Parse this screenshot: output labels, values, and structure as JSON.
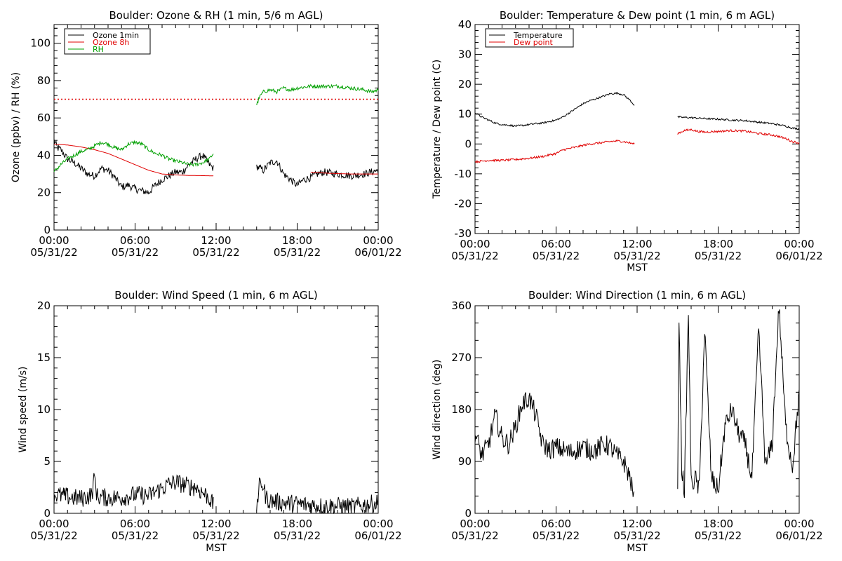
{
  "chart_data": [
    {
      "type": "line",
      "title": "Boulder: Ozone & RH (1 min, 5/6 m AGL)",
      "ylabel": "Ozone (ppbv) / RH (%)",
      "xlabel": "",
      "ylim": [
        0,
        110
      ],
      "yticks": [
        0,
        20,
        40,
        60,
        80,
        100
      ],
      "xlim": [
        "2022-05-31 00:00",
        "2022-06-01 00:00"
      ],
      "xtick_labels": [
        [
          "00:00",
          "05/31/22"
        ],
        [
          "06:00",
          "05/31/22"
        ],
        [
          "12:00",
          "05/31/22"
        ],
        [
          "18:00",
          "05/31/22"
        ],
        [
          "00:00",
          "06/01/22"
        ]
      ],
      "legend": "top-left",
      "reference_line": {
        "y": 70,
        "style": "dotted",
        "color": "#e00000"
      },
      "series": [
        {
          "name": "Ozone 1min",
          "color": "#000000",
          "noise": 2.0,
          "segments": [
            {
              "x": [
                0,
                0.25,
                0.5,
                1,
                1.5,
                2,
                2.5,
                3,
                3.5,
                4,
                4.5,
                5,
                5.5,
                6,
                6.5,
                7,
                7.5,
                8,
                8.5,
                9,
                9.5,
                10,
                10.5,
                11,
                11.5,
                11.8
              ],
              "y": [
                48,
                44,
                43,
                38,
                36,
                33,
                30,
                29,
                33,
                32,
                28,
                23,
                24,
                22,
                21,
                20,
                24,
                27,
                29,
                31,
                31,
                35,
                38,
                40,
                35,
                33
              ]
            },
            {
              "x": [
                15,
                15.5,
                16,
                16.5,
                17,
                17.5,
                18,
                18.5,
                19,
                19.5,
                20,
                21,
                22,
                23,
                23.5,
                24
              ],
              "y": [
                34,
                32,
                36,
                37,
                30,
                27,
                24,
                27,
                28,
                30,
                31,
                30,
                29,
                30,
                31,
                32
              ]
            }
          ]
        },
        {
          "name": "Ozone 8h",
          "color": "#e00000",
          "noise": 0,
          "segments": [
            {
              "x": [
                0,
                1,
                2,
                3,
                4,
                5,
                6,
                7,
                8,
                9,
                10,
                11,
                11.8
              ],
              "y": [
                46,
                45.5,
                44.5,
                43,
                41,
                38,
                35,
                32,
                30,
                29.5,
                29.2,
                29.1,
                29
              ]
            },
            {
              "x": [
                19,
                20,
                21,
                22,
                23,
                24
              ],
              "y": [
                31,
                30.5,
                30.2,
                30,
                30,
                30
              ]
            }
          ]
        },
        {
          "name": "RH",
          "color": "#00a000",
          "noise": 1.0,
          "segments": [
            {
              "x": [
                0,
                0.5,
                1,
                1.5,
                2,
                2.5,
                3,
                3.5,
                4,
                4.5,
                5,
                5.5,
                6,
                6.5,
                7,
                7.5,
                8,
                8.5,
                9,
                9.5,
                10,
                10.5,
                11,
                11.5,
                11.8
              ],
              "y": [
                31,
                35,
                38,
                40,
                42,
                43,
                45,
                47,
                46,
                44,
                43,
                46,
                47,
                46,
                43,
                41,
                40,
                38,
                37,
                36,
                35,
                35,
                36,
                38,
                41
              ]
            },
            {
              "x": [
                15,
                15.2,
                15.5,
                16,
                16.5,
                17,
                17.5,
                18,
                19,
                20,
                21,
                22,
                23,
                23.5,
                24
              ],
              "y": [
                67,
                71,
                74,
                75,
                74,
                76,
                75,
                76,
                77,
                77,
                77,
                76,
                75,
                74,
                75
              ]
            }
          ]
        }
      ]
    },
    {
      "type": "line",
      "title": "Boulder: Temperature & Dew point (1 min, 6 m AGL)",
      "ylabel": "Temperature / Dew point (C)",
      "xlabel": "MST",
      "ylim": [
        -30,
        40
      ],
      "yticks": [
        -30,
        -20,
        -10,
        0,
        10,
        20,
        30,
        40
      ],
      "xlim": [
        "2022-05-31 00:00",
        "2022-06-01 00:00"
      ],
      "xtick_labels": [
        [
          "00:00",
          "05/31/22"
        ],
        [
          "06:00",
          "05/31/22"
        ],
        [
          "12:00",
          "05/31/22"
        ],
        [
          "18:00",
          "05/31/22"
        ],
        [
          "00:00",
          "06/01/22"
        ]
      ],
      "legend": "top-left",
      "series": [
        {
          "name": "Temperature",
          "color": "#000000",
          "noise": 0.3,
          "segments": [
            {
              "x": [
                0,
                0.5,
                1,
                1.5,
                2,
                2.5,
                3,
                3.5,
                4,
                4.5,
                5,
                5.5,
                6,
                6.5,
                7,
                7.5,
                8,
                8.5,
                9,
                9.5,
                10,
                10.5,
                11,
                11.5,
                11.8
              ],
              "y": [
                10.5,
                9,
                8,
                7,
                6.5,
                6.3,
                6,
                6.2,
                6.5,
                6.8,
                7,
                7.5,
                8,
                9,
                10.5,
                12,
                13.5,
                14.5,
                15.2,
                16,
                16.8,
                17,
                16.5,
                14.5,
                13
              ]
            },
            {
              "x": [
                15,
                16,
                17,
                18,
                19,
                20,
                21,
                22,
                23,
                23.5,
                24
              ],
              "y": [
                9,
                8.8,
                8.5,
                8.3,
                8,
                7.8,
                7.3,
                6.8,
                6,
                5.3,
                5
              ]
            }
          ]
        },
        {
          "name": "Dew point",
          "color": "#e00000",
          "noise": 0.35,
          "segments": [
            {
              "x": [
                0,
                1,
                2,
                3,
                4,
                5,
                6,
                6.5,
                7,
                7.5,
                8,
                8.5,
                9,
                9.5,
                10,
                10.5,
                11,
                11.5,
                11.8
              ],
              "y": [
                -6,
                -5.5,
                -5.5,
                -5.2,
                -4.8,
                -4.2,
                -3.2,
                -2,
                -1.5,
                -1,
                -0.5,
                0,
                0.2,
                0.5,
                0.8,
                1,
                0.8,
                0.3,
                0
              ]
            },
            {
              "x": [
                15,
                15.5,
                16,
                16.5,
                17,
                18,
                19,
                20,
                21,
                22,
                22.5,
                23,
                23.5,
                24
              ],
              "y": [
                3.5,
                4.5,
                4.8,
                4.2,
                4,
                4.2,
                4.5,
                4.3,
                3.5,
                3,
                2.5,
                1.8,
                0.8,
                0.3
              ]
            }
          ]
        }
      ]
    },
    {
      "type": "line",
      "title": "Boulder: Wind Speed (1 min, 6 m AGL)",
      "ylabel": "Wind speed (m/s)",
      "xlabel": "MST",
      "ylim": [
        0,
        20
      ],
      "yticks": [
        0,
        5,
        10,
        15,
        20
      ],
      "xlim": [
        "2022-05-31 00:00",
        "2022-06-01 00:00"
      ],
      "xtick_labels": [
        [
          "00:00",
          "05/31/22"
        ],
        [
          "06:00",
          "05/31/22"
        ],
        [
          "12:00",
          "05/31/22"
        ],
        [
          "18:00",
          "05/31/22"
        ],
        [
          "00:00",
          "06/01/22"
        ]
      ],
      "series": [
        {
          "name": "",
          "color": "#000000",
          "noise": 0.9,
          "segments": [
            {
              "x": [
                0,
                1,
                2,
                2.8,
                3,
                3.2,
                4,
                5,
                6,
                7,
                8,
                8.5,
                9,
                9.5,
                10,
                10.5,
                11,
                11.5,
                11.8
              ],
              "y": [
                1.8,
                1.6,
                1.4,
                1.8,
                3.5,
                1.6,
                1.5,
                1.5,
                1.8,
                1.7,
                2.4,
                2.8,
                3,
                2.8,
                2.6,
                2.5,
                2,
                1.5,
                0.7
              ]
            },
            {
              "x": [
                15,
                15.2,
                15.4,
                15.7,
                16,
                17,
                18,
                19,
                20,
                21,
                22,
                23,
                23.5,
                24
              ],
              "y": [
                0.8,
                2.5,
                3,
                1.5,
                1.2,
                1,
                0.9,
                0.8,
                0.7,
                0.7,
                0.6,
                0.8,
                0.9,
                1
              ]
            }
          ]
        }
      ]
    },
    {
      "type": "line",
      "title": "Boulder: Wind Direction (1 min, 6 m AGL)",
      "ylabel": "Wind direction (deg)",
      "xlabel": "MST",
      "ylim": [
        0,
        360
      ],
      "yticks": [
        0,
        90,
        180,
        270,
        360
      ],
      "xlim": [
        "2022-05-31 00:00",
        "2022-06-01 00:00"
      ],
      "xtick_labels": [
        [
          "00:00",
          "05/31/22"
        ],
        [
          "06:00",
          "05/31/22"
        ],
        [
          "12:00",
          "05/31/22"
        ],
        [
          "18:00",
          "05/31/22"
        ],
        [
          "00:00",
          "06/01/22"
        ]
      ],
      "series": [
        {
          "name": "",
          "color": "#000000",
          "noise": 18,
          "segments": [
            {
              "x": [
                0,
                0.5,
                1,
                1.5,
                2,
                2.5,
                3,
                3.5,
                4,
                4.5,
                5,
                5.5,
                6,
                6.5,
                7,
                7.5,
                8,
                8.5,
                9,
                9.5,
                10,
                10.5,
                11,
                11.5,
                11.8
              ],
              "y": [
                140,
                100,
                120,
                170,
                130,
                120,
                150,
                190,
                200,
                170,
                120,
                110,
                115,
                110,
                105,
                110,
                115,
                110,
                110,
                120,
                115,
                100,
                90,
                60,
                20
              ]
            },
            {
              "x": [
                15,
                15.1,
                15.3,
                15.5,
                15.8,
                16,
                16.3,
                16.6,
                17,
                17.5,
                18,
                18.5,
                19,
                19.5,
                20,
                20.5,
                21,
                21.5,
                22,
                22.5,
                23,
                23.5,
                24
              ],
              "y": [
                60,
                340,
                80,
                40,
                350,
                50,
                60,
                40,
                320,
                60,
                40,
                150,
                180,
                140,
                120,
                60,
                320,
                80,
                120,
                360,
                150,
                80,
                210
              ]
            }
          ]
        }
      ]
    }
  ],
  "ui": {
    "xlabel_common": "MST"
  }
}
